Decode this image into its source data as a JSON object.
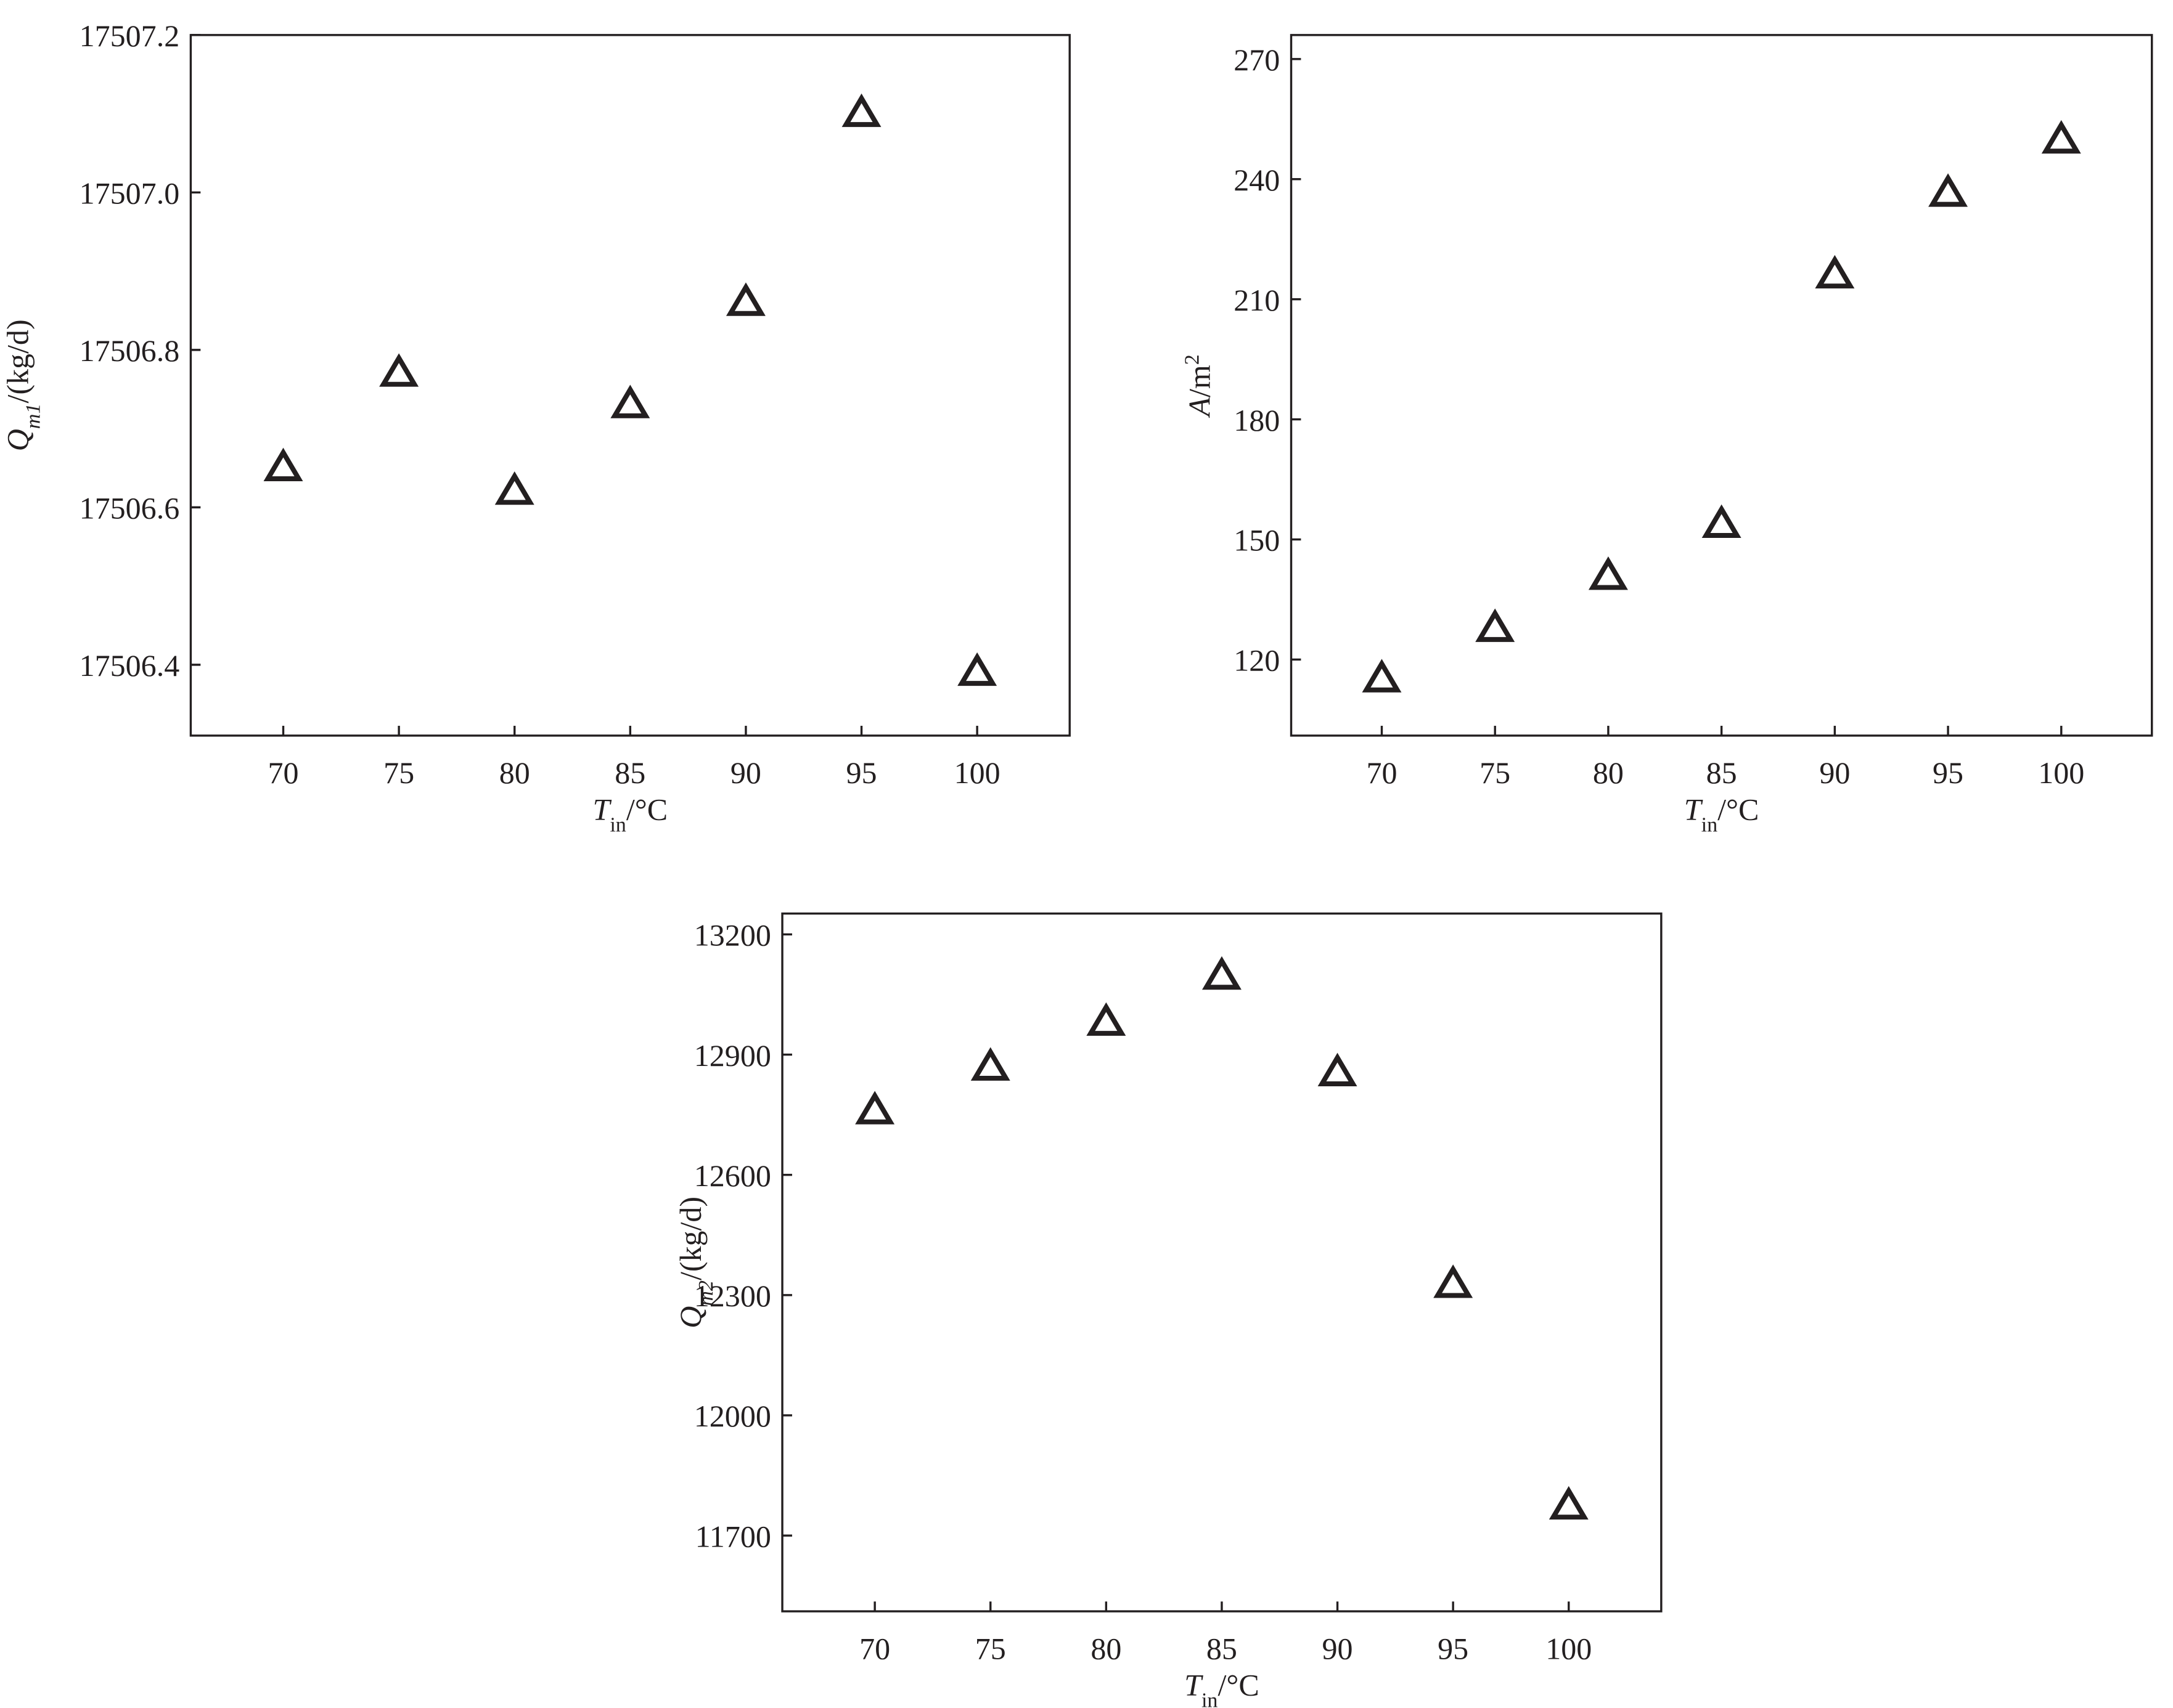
{
  "chart_data": [
    {
      "type": "scatter",
      "marker": "triangle-open",
      "color": "#231f20",
      "x": [
        70,
        75,
        80,
        85,
        90,
        95,
        100
      ],
      "values": [
        17506.65,
        17506.77,
        17506.62,
        17506.73,
        17506.86,
        17507.1,
        17506.39
      ],
      "xlim": [
        66,
        104
      ],
      "xticks": [
        70,
        75,
        80,
        85,
        90,
        95,
        100
      ],
      "ylim": [
        17506.31,
        17507.2
      ],
      "yticks": [
        17506.4,
        17506.6,
        17506.8,
        {
          "value": 17507,
          "label": "17507.0"
        },
        17507.2
      ],
      "x_label": [
        {
          "text": "T",
          "style": "italic"
        },
        {
          "text": "in",
          "style": "sub"
        },
        {
          "text": "/°C",
          "style": "normal"
        }
      ],
      "y_label": [
        {
          "text": "Q",
          "style": "italic"
        },
        {
          "text": "m1",
          "style": "sub-italic"
        },
        {
          "text": "/(kg/d)",
          "style": "normal"
        }
      ]
    },
    {
      "type": "scatter",
      "marker": "triangle-open",
      "color": "#231f20",
      "x": [
        70,
        75,
        80,
        85,
        90,
        95,
        100
      ],
      "values": [
        115.1,
        127.7,
        140.7,
        153.7,
        216.0,
        236.4,
        249.7
      ],
      "xlim": [
        66,
        104
      ],
      "xticks": [
        70,
        75,
        80,
        85,
        90,
        95,
        100
      ],
      "ylim": [
        101,
        276
      ],
      "yticks": [
        120,
        150,
        180,
        210,
        240,
        270
      ],
      "x_label": [
        {
          "text": "T",
          "style": "italic"
        },
        {
          "text": "in",
          "style": "sub"
        },
        {
          "text": "/°C",
          "style": "normal"
        }
      ],
      "y_label": [
        {
          "text": "A",
          "style": "italic"
        },
        {
          "text": "/m",
          "style": "normal"
        },
        {
          "text": "2",
          "style": "sup"
        }
      ]
    },
    {
      "type": "scatter",
      "marker": "triangle-open",
      "color": "#231f20",
      "x": [
        70,
        75,
        80,
        85,
        90,
        95,
        100
      ],
      "values": [
        12759,
        12868,
        12980,
        13095,
        12854,
        12326,
        11773
      ],
      "xlim": [
        66,
        104
      ],
      "xticks": [
        70,
        75,
        80,
        85,
        90,
        95,
        100
      ],
      "ylim": [
        11511,
        13252
      ],
      "yticks": [
        11700,
        12000,
        12300,
        12600,
        12900,
        13200
      ],
      "x_label": [
        {
          "text": "T",
          "style": "italic"
        },
        {
          "text": "in",
          "style": "sub"
        },
        {
          "text": "/°C",
          "style": "normal"
        }
      ],
      "y_label": [
        {
          "text": "Q",
          "style": "italic"
        },
        {
          "text": "m2",
          "style": "sub-italic"
        },
        {
          "text": "/(kg/d)",
          "style": "normal"
        }
      ]
    }
  ]
}
